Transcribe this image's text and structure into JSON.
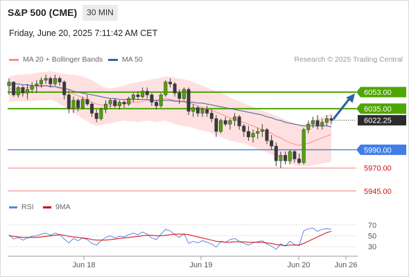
{
  "header": {
    "symbol": "S&P 500 (CME)",
    "timeframe": "30 MIN",
    "datetime": "Friday, June 20, 2025 7:11:42 AM CET"
  },
  "legend": {
    "ma20": "MA 20 + Bollinger Bands",
    "ma50": "MA 50",
    "credit": "Research © 2025 Trading Central",
    "rsi": "RSI",
    "rsi_ma": "9MA"
  },
  "colors": {
    "green": "#4ea600",
    "blue": "#3f7ee8",
    "red": "#ee8080",
    "candle": "#3a3a3a",
    "band": "#ffdada",
    "ma20": "#f49090",
    "ma50": "#3a5ea2",
    "arrow": "#2d63a8",
    "rsi": "#5b86e5",
    "rsi_ma": "#d40000"
  },
  "chart_data": [
    {
      "type": "candlestick",
      "ylim": [
        5938,
        6078
      ],
      "levels": [
        {
          "label": "6053.00",
          "value": 6053.0,
          "style": "green"
        },
        {
          "label": "6035.00",
          "value": 6035.0,
          "style": "green"
        },
        {
          "label": "6022.25",
          "value": 6022.25,
          "style": "price"
        },
        {
          "label": "5990.00",
          "value": 5990.0,
          "style": "blue"
        },
        {
          "label": "5970.00",
          "value": 5970.0,
          "style": "red"
        },
        {
          "label": "5945.00",
          "value": 5945.0,
          "style": "red"
        }
      ],
      "candles": [
        [
          6060,
          6068,
          6050,
          6064
        ],
        [
          6064,
          6065,
          6048,
          6050
        ],
        [
          6050,
          6060,
          6047,
          6058
        ],
        [
          6058,
          6060,
          6048,
          6052
        ],
        [
          6052,
          6062,
          6045,
          6056
        ],
        [
          6056,
          6064,
          6052,
          6060
        ],
        [
          6060,
          6066,
          6052,
          6062
        ],
        [
          6062,
          6069,
          6058,
          6066
        ],
        [
          6066,
          6072,
          6062,
          6068
        ],
        [
          6068,
          6070,
          6058,
          6062
        ],
        [
          6062,
          6072,
          6060,
          6068
        ],
        [
          6068,
          6070,
          6060,
          6064
        ],
        [
          6064,
          6066,
          6045,
          6050
        ],
        [
          6050,
          6055,
          6030,
          6035
        ],
        [
          6035,
          6048,
          6030,
          6044
        ],
        [
          6044,
          6046,
          6032,
          6036
        ],
        [
          6036,
          6048,
          6034,
          6045
        ],
        [
          6045,
          6050,
          6038,
          6040
        ],
        [
          6040,
          6042,
          6026,
          6030
        ],
        [
          6030,
          6034,
          6020,
          6024
        ],
        [
          6024,
          6036,
          6022,
          6034
        ],
        [
          6034,
          6044,
          6030,
          6040
        ],
        [
          6040,
          6046,
          6036,
          6044
        ],
        [
          6044,
          6046,
          6036,
          6038
        ],
        [
          6038,
          6044,
          6034,
          6042
        ],
        [
          6042,
          6044,
          6036,
          6040
        ],
        [
          6040,
          6048,
          6038,
          6046
        ],
        [
          6046,
          6052,
          6042,
          6050
        ],
        [
          6050,
          6054,
          6044,
          6048
        ],
        [
          6048,
          6058,
          6046,
          6054
        ],
        [
          6054,
          6058,
          6046,
          6050
        ],
        [
          6050,
          6052,
          6038,
          6042
        ],
        [
          6042,
          6044,
          6034,
          6038
        ],
        [
          6038,
          6052,
          6036,
          6050
        ],
        [
          6050,
          6066,
          6048,
          6064
        ],
        [
          6064,
          6068,
          6058,
          6062
        ],
        [
          6062,
          6064,
          6048,
          6052
        ],
        [
          6052,
          6056,
          6040,
          6046
        ],
        [
          6046,
          6058,
          6044,
          6056
        ],
        [
          6056,
          6058,
          6028,
          6032
        ],
        [
          6032,
          6040,
          6026,
          6036
        ],
        [
          6036,
          6038,
          6026,
          6030
        ],
        [
          6030,
          6036,
          6026,
          6034
        ],
        [
          6034,
          6038,
          6026,
          6030
        ],
        [
          6030,
          6034,
          6020,
          6024
        ],
        [
          6024,
          6028,
          6004,
          6010
        ],
        [
          6010,
          6024,
          6008,
          6022
        ],
        [
          6022,
          6026,
          6016,
          6018
        ],
        [
          6018,
          6024,
          6012,
          6022
        ],
        [
          6022,
          6030,
          6016,
          6026
        ],
        [
          6026,
          6028,
          6012,
          6016
        ],
        [
          6016,
          6018,
          6004,
          6010
        ],
        [
          6010,
          6016,
          6000,
          6004
        ],
        [
          6004,
          6012,
          5998,
          6008
        ],
        [
          6008,
          6014,
          6002,
          6010
        ],
        [
          6010,
          6018,
          6004,
          6012
        ],
        [
          6012,
          6014,
          5996,
          6000
        ],
        [
          6000,
          6006,
          5990,
          5994
        ],
        [
          5994,
          5998,
          5972,
          5978
        ],
        [
          5978,
          5988,
          5970,
          5984
        ],
        [
          5984,
          5988,
          5974,
          5978
        ],
        [
          5978,
          5990,
          5974,
          5988
        ],
        [
          5988,
          5990,
          5976,
          5980
        ],
        [
          5980,
          5986,
          5974,
          5976
        ],
        [
          5976,
          6014,
          5974,
          6012
        ],
        [
          6012,
          6022,
          6008,
          6018
        ],
        [
          6018,
          6026,
          6014,
          6022
        ],
        [
          6022,
          6028,
          6012,
          6016
        ],
        [
          6016,
          6024,
          6012,
          6020
        ],
        [
          6020,
          6028,
          6016,
          6024
        ],
        [
          6024,
          6028,
          6018,
          6022
        ]
      ],
      "ma20": [
        6056,
        6057,
        6057,
        6057,
        6058,
        6058,
        6059,
        6059,
        6060,
        6060,
        6059,
        6057,
        6055,
        6053,
        6051,
        6049,
        6047,
        6044,
        6042,
        6040,
        6039,
        6038,
        6038,
        6039,
        6040,
        6041,
        6041,
        6042,
        6042,
        6043,
        6044,
        6044,
        6044,
        6045,
        6046,
        6045,
        6044,
        6043,
        6042,
        6041,
        6040,
        6038,
        6036,
        6035,
        6033,
        6031,
        6029,
        6027,
        6025,
        6023,
        6021,
        6020,
        6018,
        6016,
        6014,
        6012,
        6010,
        6008,
        6005,
        6003,
        6000,
        5998,
        5996,
        5995,
        5996,
        5997,
        5999,
        6001,
        6003,
        6005,
        6007
      ],
      "bb_upper": [
        6070,
        6071,
        6072,
        6072,
        6073,
        6073,
        6074,
        6075,
        6075,
        6076,
        6075,
        6074,
        6073,
        6072,
        6072,
        6071,
        6070,
        6068,
        6066,
        6063,
        6060,
        6058,
        6057,
        6058,
        6059,
        6060,
        6062,
        6063,
        6064,
        6065,
        6066,
        6067,
        6068,
        6069,
        6070,
        6070,
        6069,
        6068,
        6067,
        6066,
        6064,
        6062,
        6060,
        6058,
        6056,
        6054,
        6052,
        6050,
        6047,
        6045,
        6043,
        6041,
        6039,
        6037,
        6035,
        6033,
        6031,
        6029,
        6027,
        6025,
        6023,
        6021,
        6019,
        6017,
        6018,
        6020,
        6022,
        6024,
        6026,
        6028,
        6030
      ],
      "bb_lower": [
        6042,
        6043,
        6043,
        6043,
        6043,
        6043,
        6044,
        6044,
        6044,
        6045,
        6043,
        6040,
        6037,
        6034,
        6031,
        6027,
        6024,
        6021,
        6018,
        6016,
        6017,
        6018,
        6019,
        6020,
        6021,
        6022,
        6021,
        6021,
        6020,
        6021,
        6022,
        6021,
        6020,
        6021,
        6022,
        6020,
        6018,
        6017,
        6016,
        6015,
        6014,
        6012,
        6011,
        6010,
        6008,
        6006,
        6004,
        6002,
        6000,
        5999,
        5998,
        5997,
        5995,
        5993,
        5991,
        5989,
        5987,
        5985,
        5983,
        5981,
        5978,
        5975,
        5973,
        5972,
        5972,
        5972,
        5973,
        5974,
        5975,
        5976,
        5977
      ],
      "ma50": [
        6062,
        6062,
        6062,
        6061,
        6061,
        6060,
        6060,
        6060,
        6060,
        6059,
        6059,
        6058,
        6057,
        6056,
        6054,
        6053,
        6052,
        6051,
        6050,
        6049,
        6048,
        6047,
        6046,
        6046,
        6045,
        6045,
        6045,
        6045,
        6045,
        6045,
        6045,
        6044,
        6044,
        6044,
        6044,
        6044,
        6043,
        6043,
        6043,
        6042,
        6042,
        6041,
        6041,
        6040,
        6039,
        6038,
        6037,
        6036,
        6035,
        6034,
        6033,
        6032,
        6031,
        6030,
        6029,
        6028,
        6026,
        6025,
        6023,
        6022,
        6020,
        6019,
        6018,
        6017,
        6016,
        6016,
        6016,
        6016,
        6016,
        6016,
        6015
      ]
    },
    {
      "type": "line",
      "series": [
        {
          "name": "RSI",
          "values": [
            52,
            44,
            47,
            42,
            46,
            49,
            50,
            53,
            55,
            51,
            55,
            52,
            44,
            37,
            45,
            41,
            46,
            43,
            36,
            33,
            41,
            47,
            50,
            46,
            49,
            48,
            52,
            55,
            52,
            57,
            53,
            46,
            43,
            53,
            62,
            59,
            52,
            47,
            54,
            36,
            40,
            37,
            41,
            38,
            35,
            29,
            40,
            38,
            43,
            45,
            40,
            36,
            33,
            37,
            39,
            41,
            35,
            31,
            25,
            35,
            31,
            40,
            34,
            32,
            59,
            63,
            64,
            58,
            62,
            63,
            62
          ]
        },
        {
          "name": "9MA",
          "values": [
            50,
            49,
            48,
            47,
            47,
            47,
            47,
            48,
            49,
            50,
            51,
            52,
            51,
            49,
            48,
            47,
            46,
            45,
            43,
            42,
            42,
            42,
            43,
            44,
            45,
            46,
            47,
            48,
            49,
            50,
            51,
            51,
            50,
            50,
            51,
            52,
            53,
            53,
            53,
            52,
            50,
            48,
            46,
            44,
            42,
            40,
            39,
            38,
            38,
            39,
            39,
            39,
            38,
            38,
            38,
            38,
            37,
            36,
            34,
            33,
            32,
            33,
            33,
            33,
            36,
            40,
            44,
            48,
            52,
            56,
            58
          ]
        }
      ],
      "ylim": [
        15,
        85
      ],
      "ticks": [
        70,
        50,
        30
      ]
    }
  ],
  "x_axis": {
    "labels": [
      "Jun 18",
      "Jun 19",
      "Jun 20",
      "Jun 26"
    ]
  }
}
